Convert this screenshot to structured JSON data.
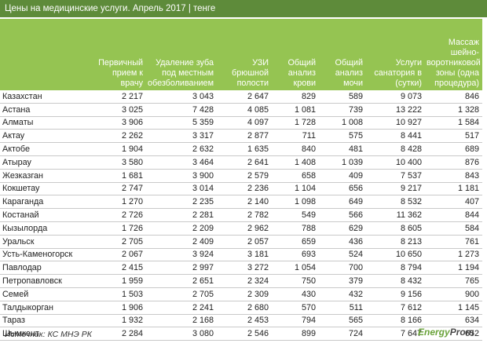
{
  "header": {
    "title": "Цены на медицинские услуги. Апрель 2017 | тенге"
  },
  "table": {
    "columns": [
      "",
      "Первичный прием к врачу",
      "Удаление зуба под местным обезболиванием",
      "УЗИ брюшной полости",
      "Общий анализ крови",
      "Общий анализ мочи",
      "Услуги санатория в (сутки)",
      "Массаж шейно-воротниковой зоны (одна процедура)"
    ],
    "rows": [
      [
        "Казахстан",
        "2 217",
        "3 043",
        "2 647",
        "829",
        "589",
        "9 073",
        "846"
      ],
      [
        "Астана",
        "3 025",
        "7 428",
        "4 085",
        "1 081",
        "739",
        "13 222",
        "1 328"
      ],
      [
        "Алматы",
        "3 906",
        "5 359",
        "4 097",
        "1 728",
        "1 008",
        "10 927",
        "1 584"
      ],
      [
        "Актау",
        "2 262",
        "3 317",
        "2 877",
        "711",
        "575",
        "8 441",
        "517"
      ],
      [
        "Актобе",
        "1 904",
        "2 632",
        "1 635",
        "840",
        "481",
        "8 428",
        "689"
      ],
      [
        "Атырау",
        "3 580",
        "3 464",
        "2 641",
        "1 408",
        "1 039",
        "10 400",
        "876"
      ],
      [
        "Жезказган",
        "1 681",
        "3 900",
        "2 579",
        "658",
        "409",
        "7 537",
        "843"
      ],
      [
        "Кокшетау",
        "2 747",
        "3 014",
        "2 236",
        "1 104",
        "656",
        "9 217",
        "1 181"
      ],
      [
        "Караганда",
        "1 270",
        "2 235",
        "2 140",
        "1 098",
        "649",
        "8 532",
        "407"
      ],
      [
        "Костанай",
        "2 726",
        "2 281",
        "2 782",
        "549",
        "566",
        "11 362",
        "844"
      ],
      [
        "Кызылорда",
        "1 726",
        "2 209",
        "2 962",
        "788",
        "629",
        "8 605",
        "584"
      ],
      [
        "Уральск",
        "2 705",
        "2 409",
        "2 057",
        "659",
        "436",
        "8 213",
        "761"
      ],
      [
        "Усть-Каменогорск",
        "2 067",
        "3 924",
        "3 181",
        "693",
        "524",
        "10 650",
        "1 273"
      ],
      [
        "Павлодар",
        "2 415",
        "2 997",
        "3 272",
        "1 054",
        "700",
        "8 794",
        "1 194"
      ],
      [
        "Петропавловск",
        "1 959",
        "2 651",
        "2 324",
        "750",
        "379",
        "8 432",
        "765"
      ],
      [
        "Семей",
        "1 503",
        "2 705",
        "2 309",
        "430",
        "432",
        "9 156",
        "900"
      ],
      [
        "Талдыкорган",
        "1 906",
        "2 241",
        "2 680",
        "570",
        "511",
        "7 612",
        "1 145"
      ],
      [
        "Тараз",
        "1 932",
        "2 168",
        "2 453",
        "794",
        "565",
        "8 166",
        "634"
      ],
      [
        "Шымкент",
        "2 284",
        "3 080",
        "2 546",
        "899",
        "724",
        "7 647",
        "652"
      ]
    ]
  },
  "footer": {
    "source": "Источник: КС МНЭ РК",
    "logo_a": "Energy",
    "logo_b": "Prom"
  }
}
